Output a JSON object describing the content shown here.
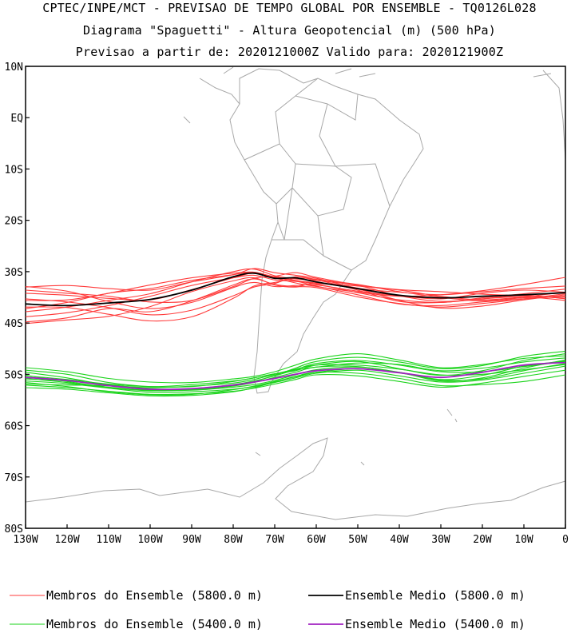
{
  "header": {
    "line1": "CPTEC/INPE/MCT - PREVISAO DE TEMPO GLOBAL POR ENSEMBLE - TQ0126L028",
    "line2": "Diagrama \"Spaguetti\" - Altura Geopotencial (m) (500 hPa)",
    "line3": "Previsao a partir de: 2020121000Z  Valido para: 2020121900Z"
  },
  "legend": {
    "red_members": "Membros do Ensemble (5800.0 m)",
    "black_mean": "Ensemble Medio (5800.0 m)",
    "green_members": "Membros do Ensemble (5400.0 m)",
    "purple_mean": "Ensemble Medio (5400.0 m)"
  },
  "colors": {
    "red_members": "#ff3b3b",
    "black_mean": "#000000",
    "green_members": "#1ad31a",
    "purple_mean": "#a020c0",
    "coastline": "#a8a8a8",
    "frame": "#000000"
  },
  "chart_data": {
    "type": "line",
    "xlabel": "",
    "ylabel": "",
    "xlim": [
      -130,
      0
    ],
    "ylim": [
      -80,
      10
    ],
    "x_ticks": [
      {
        "value": -130,
        "label": "130W"
      },
      {
        "value": -120,
        "label": "120W"
      },
      {
        "value": -110,
        "label": "110W"
      },
      {
        "value": -100,
        "label": "100W"
      },
      {
        "value": -90,
        "label": "90W"
      },
      {
        "value": -80,
        "label": "80W"
      },
      {
        "value": -70,
        "label": "70W"
      },
      {
        "value": -60,
        "label": "60W"
      },
      {
        "value": -50,
        "label": "50W"
      },
      {
        "value": -40,
        "label": "40W"
      },
      {
        "value": -30,
        "label": "30W"
      },
      {
        "value": -20,
        "label": "20W"
      },
      {
        "value": -10,
        "label": "10W"
      },
      {
        "value": 0,
        "label": "0"
      }
    ],
    "y_ticks": [
      {
        "value": 10,
        "label": "10N"
      },
      {
        "value": 0,
        "label": "EQ"
      },
      {
        "value": -10,
        "label": "10S"
      },
      {
        "value": -20,
        "label": "20S"
      },
      {
        "value": -30,
        "label": "30S"
      },
      {
        "value": -40,
        "label": "40S"
      },
      {
        "value": -50,
        "label": "50S"
      },
      {
        "value": -60,
        "label": "60S"
      },
      {
        "value": -70,
        "label": "70S"
      },
      {
        "value": -80,
        "label": "80S"
      }
    ],
    "x": [
      -130,
      -120,
      -110,
      -100,
      -90,
      -80,
      -75,
      -70,
      -65,
      -60,
      -50,
      -40,
      -30,
      -20,
      -10,
      0
    ],
    "series": [
      {
        "name": "Ensemble Medio (5800.0 m)",
        "color": "#000000",
        "width": 1.8,
        "values": [
          -36.3,
          -36.6,
          -36.1,
          -35.4,
          -33.6,
          -31.0,
          -30.3,
          -31.3,
          -31.2,
          -32.0,
          -33.3,
          -34.6,
          -35.1,
          -34.8,
          -34.5,
          -34.1
        ]
      },
      {
        "name": "Ensemble Medio (5400.0 m)",
        "color": "#a020c0",
        "width": 1.8,
        "values": [
          -50.6,
          -51.2,
          -52.2,
          -52.9,
          -52.8,
          -52.1,
          -51.5,
          -50.8,
          -50.0,
          -49.3,
          -48.9,
          -49.7,
          -50.6,
          -49.6,
          -48.2,
          -47.7
        ]
      }
    ],
    "member_series": [
      {
        "group": "5800.0 m",
        "color": "#ff3b3b",
        "values": [
          -33.0,
          -32.7,
          -33.3,
          -33.6,
          -32.0,
          -30.6,
          -29.4,
          -30.2,
          -30.7,
          -31.3,
          -33.2,
          -34.0,
          -34.5,
          -33.9,
          -33.3,
          -32.8
        ]
      },
      {
        "group": "5800.0 m",
        "color": "#ff3b3b",
        "values": [
          -34.2,
          -34.6,
          -35.2,
          -35.5,
          -33.5,
          -31.2,
          -30.3,
          -31.0,
          -31.7,
          -32.2,
          -32.8,
          -33.6,
          -34.8,
          -35.5,
          -34.9,
          -34.0
        ]
      },
      {
        "group": "5800.0 m",
        "color": "#ff3b3b",
        "values": [
          -37.8,
          -36.9,
          -35.6,
          -34.3,
          -32.0,
          -30.0,
          -29.5,
          -30.8,
          -31.4,
          -31.7,
          -32.7,
          -34.7,
          -35.8,
          -35.3,
          -34.6,
          -35.3
        ]
      },
      {
        "group": "5800.0 m",
        "color": "#ff3b3b",
        "values": [
          -38.8,
          -38.0,
          -36.6,
          -34.8,
          -32.7,
          -31.2,
          -30.7,
          -31.6,
          -31.9,
          -32.4,
          -34.1,
          -35.5,
          -36.0,
          -35.1,
          -34.3,
          -33.4
        ]
      },
      {
        "group": "5800.0 m",
        "color": "#ff3b3b",
        "values": [
          -35.6,
          -35.5,
          -34.2,
          -32.6,
          -31.2,
          -30.3,
          -30.1,
          -31.2,
          -32.2,
          -32.9,
          -34.0,
          -34.8,
          -34.5,
          -33.7,
          -32.5,
          -31.1
        ]
      },
      {
        "group": "5800.0 m",
        "color": "#ff3b3b",
        "values": [
          -39.8,
          -39.0,
          -37.2,
          -37.8,
          -35.7,
          -32.6,
          -31.4,
          -32.5,
          -32.9,
          -33.1,
          -34.9,
          -36.2,
          -36.9,
          -36.2,
          -35.3,
          -34.3
        ]
      },
      {
        "group": "5800.0 m",
        "color": "#ff3b3b",
        "values": [
          -40.1,
          -39.4,
          -38.7,
          -36.8,
          -33.9,
          -31.8,
          -31.2,
          -32.6,
          -33.0,
          -32.3,
          -33.4,
          -35.6,
          -37.1,
          -36.7,
          -35.5,
          -34.5
        ]
      },
      {
        "group": "5800.0 m",
        "color": "#ff3b3b",
        "values": [
          -36.9,
          -37.0,
          -38.3,
          -39.6,
          -38.8,
          -35.2,
          -32.8,
          -32.1,
          -31.3,
          -31.6,
          -33.6,
          -35.8,
          -36.0,
          -35.3,
          -34.9,
          -35.6
        ]
      },
      {
        "group": "5800.0 m",
        "color": "#ff3b3b",
        "values": [
          -32.9,
          -33.8,
          -35.8,
          -37.2,
          -36.0,
          -33.1,
          -32.1,
          -32.9,
          -32.7,
          -32.6,
          -33.8,
          -34.7,
          -35.3,
          -34.2,
          -33.6,
          -34.0
        ]
      },
      {
        "group": "5800.0 m",
        "color": "#ff3b3b",
        "values": [
          -35.3,
          -35.9,
          -37.0,
          -38.4,
          -37.5,
          -34.7,
          -33.0,
          -32.3,
          -31.0,
          -31.5,
          -32.5,
          -33.9,
          -35.0,
          -35.7,
          -35.1,
          -34.9
        ]
      },
      {
        "group": "5800.0 m",
        "color": "#ff3b3b",
        "values": [
          -37.2,
          -36.0,
          -34.2,
          -33.3,
          -31.7,
          -30.6,
          -30.1,
          -31.1,
          -31.8,
          -32.8,
          -34.5,
          -36.3,
          -36.6,
          -35.9,
          -35.3,
          -34.8
        ]
      },
      {
        "group": "5800.0 m",
        "color": "#ff3b3b",
        "values": [
          -33.6,
          -34.2,
          -34.8,
          -35.9,
          -35.6,
          -32.9,
          -31.3,
          -30.9,
          -30.2,
          -31.1,
          -32.6,
          -33.5,
          -33.9,
          -34.4,
          -34.7,
          -35.2
        ]
      },
      {
        "group": "5400.0 m",
        "color": "#1ad31a",
        "values": [
          -48.7,
          -49.5,
          -50.8,
          -51.5,
          -51.6,
          -50.9,
          -50.4,
          -49.5,
          -48.2,
          -47.0,
          -46.0,
          -47.2,
          -48.7,
          -48.1,
          -46.9,
          -46.4
        ]
      },
      {
        "group": "5400.0 m",
        "color": "#1ad31a",
        "values": [
          -49.2,
          -50.0,
          -51.6,
          -52.4,
          -52.4,
          -51.4,
          -50.7,
          -49.9,
          -49.3,
          -48.2,
          -47.5,
          -48.9,
          -50.2,
          -49.3,
          -47.3,
          -46.0
        ]
      },
      {
        "group": "5400.0 m",
        "color": "#1ad31a",
        "values": [
          -50.2,
          -51.4,
          -52.5,
          -53.1,
          -53.1,
          -52.5,
          -52.0,
          -51.2,
          -50.1,
          -49.1,
          -48.6,
          -49.6,
          -51.3,
          -50.7,
          -48.8,
          -47.2
        ]
      },
      {
        "group": "5400.0 m",
        "color": "#1ad31a",
        "values": [
          -51.3,
          -51.8,
          -52.7,
          -53.5,
          -53.4,
          -52.9,
          -52.4,
          -51.6,
          -50.7,
          -49.8,
          -49.2,
          -50.3,
          -51.5,
          -51.1,
          -49.8,
          -48.4
        ]
      },
      {
        "group": "5400.0 m",
        "color": "#1ad31a",
        "values": [
          -52.1,
          -52.6,
          -53.3,
          -53.9,
          -53.8,
          -53.3,
          -52.7,
          -51.9,
          -51.0,
          -50.1,
          -50.3,
          -51.4,
          -52.5,
          -51.7,
          -50.4,
          -49.2
        ]
      },
      {
        "group": "5400.0 m",
        "color": "#1ad31a",
        "values": [
          -50.9,
          -51.3,
          -52.0,
          -52.8,
          -52.8,
          -52.0,
          -51.3,
          -50.3,
          -49.1,
          -47.9,
          -47.3,
          -48.2,
          -49.5,
          -49.5,
          -48.5,
          -47.5
        ]
      },
      {
        "group": "5400.0 m",
        "color": "#1ad31a",
        "values": [
          -49.6,
          -50.7,
          -52.1,
          -53.0,
          -52.9,
          -52.2,
          -51.4,
          -50.2,
          -48.8,
          -47.5,
          -46.7,
          -47.6,
          -48.9,
          -48.3,
          -46.5,
          -45.5
        ]
      },
      {
        "group": "5400.0 m",
        "color": "#1ad31a",
        "values": [
          -52.6,
          -52.9,
          -53.6,
          -54.2,
          -54.1,
          -53.4,
          -52.6,
          -51.5,
          -50.4,
          -49.6,
          -49.8,
          -50.8,
          -52.2,
          -52.0,
          -51.4,
          -50.1
        ]
      },
      {
        "group": "5400.0 m",
        "color": "#1ad31a",
        "values": [
          -51.9,
          -52.1,
          -52.2,
          -52.6,
          -52.3,
          -51.7,
          -51.0,
          -50.0,
          -49.0,
          -48.2,
          -48.2,
          -49.0,
          -50.1,
          -50.0,
          -49.1,
          -48.1
        ]
      },
      {
        "group": "5400.0 m",
        "color": "#1ad31a",
        "values": [
          -50.3,
          -51.0,
          -51.9,
          -52.4,
          -52.0,
          -51.3,
          -50.7,
          -49.9,
          -49.1,
          -48.6,
          -47.8,
          -48.1,
          -49.3,
          -48.8,
          -47.6,
          -46.8
        ]
      },
      {
        "group": "5400.0 m",
        "color": "#1ad31a",
        "values": [
          -51.6,
          -52.4,
          -53.4,
          -54.0,
          -53.9,
          -53.0,
          -52.3,
          -51.4,
          -50.5,
          -49.6,
          -48.9,
          -49.6,
          -51.0,
          -50.2,
          -48.4,
          -47.4
        ]
      },
      {
        "group": "5400.0 m",
        "color": "#1ad31a",
        "values": [
          -50.8,
          -51.6,
          -52.6,
          -53.2,
          -53.0,
          -52.3,
          -51.6,
          -50.6,
          -49.6,
          -48.6,
          -48.5,
          -49.7,
          -51.1,
          -50.9,
          -49.3,
          -47.9
        ]
      }
    ]
  }
}
